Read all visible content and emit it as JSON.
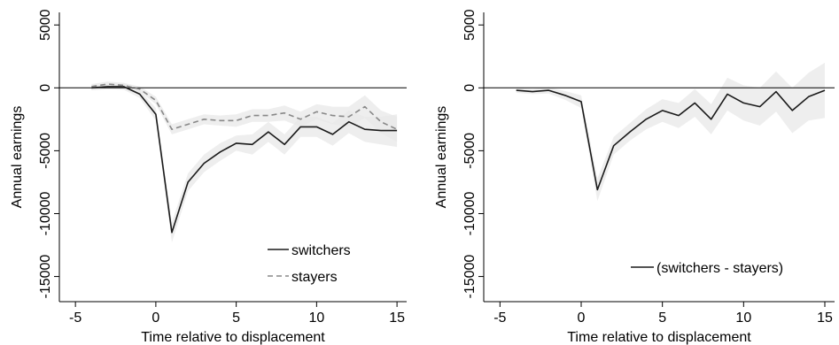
{
  "chart_data": [
    {
      "type": "line",
      "xlabel": "Time relative to displacement",
      "ylabel": "Annual earnings",
      "xlim": [
        -6,
        15.6
      ],
      "ylim": [
        -17000,
        6000
      ],
      "xticks": [
        -5,
        0,
        5,
        10,
        15
      ],
      "yticks": [
        5000,
        0,
        -5000,
        -10000,
        -15000
      ],
      "xtick_labels": [
        "-5",
        "0",
        "5",
        "10",
        "15"
      ],
      "ytick_labels": [
        "5000",
        "0",
        "-5000",
        "-10000",
        "-15000"
      ],
      "reference_line_y": 0,
      "grid": false,
      "legend_position": "bottom-right",
      "x": [
        -4,
        -3,
        -2,
        -1,
        0,
        1,
        2,
        3,
        4,
        5,
        6,
        7,
        8,
        9,
        10,
        11,
        12,
        13,
        14,
        15
      ],
      "series": [
        {
          "name": "switchers",
          "style": "solid",
          "color": "#1a1a1a",
          "values": [
            0,
            100,
            100,
            -500,
            -2100,
            -11500,
            -7500,
            -6000,
            -5100,
            -4400,
            -4500,
            -3500,
            -4500,
            -3100,
            -3100,
            -3700,
            -2700,
            -3300,
            -3400,
            -3400
          ],
          "ci_lower": [
            -200,
            -100,
            -150,
            -800,
            -2600,
            -12300,
            -8200,
            -6700,
            -5800,
            -5000,
            -5300,
            -4300,
            -5300,
            -3900,
            -3900,
            -4600,
            -3600,
            -4300,
            -4500,
            -4700
          ],
          "ci_upper": [
            200,
            300,
            350,
            -200,
            -1600,
            -10700,
            -6800,
            -5300,
            -4400,
            -3800,
            -3700,
            -2700,
            -3700,
            -2300,
            -2300,
            -2800,
            -1800,
            -2300,
            -2300,
            -2100
          ]
        },
        {
          "name": "stayers",
          "style": "dashed",
          "color": "#888888",
          "values": [
            100,
            300,
            200,
            -100,
            -1000,
            -3300,
            -2900,
            -2500,
            -2600,
            -2600,
            -2200,
            -2200,
            -2000,
            -2500,
            -1900,
            -2200,
            -2300,
            -1500,
            -2700,
            -3300
          ],
          "ci_lower": [
            -100,
            100,
            0,
            -300,
            -1300,
            -3700,
            -3300,
            -2900,
            -3000,
            -3100,
            -2700,
            -2700,
            -2600,
            -3100,
            -2500,
            -2900,
            -3100,
            -2400,
            -3600,
            -4300
          ],
          "ci_upper": [
            300,
            500,
            400,
            100,
            -700,
            -2900,
            -2500,
            -2100,
            -2200,
            -2100,
            -1700,
            -1700,
            -1400,
            -1900,
            -1300,
            -1500,
            -1500,
            -600,
            -1800,
            -2300
          ]
        }
      ]
    },
    {
      "type": "line",
      "xlabel": "Time relative to displacement",
      "ylabel": "Annual earnings",
      "xlim": [
        -6,
        15.6
      ],
      "ylim": [
        -17000,
        6000
      ],
      "xticks": [
        -5,
        0,
        5,
        10,
        15
      ],
      "yticks": [
        5000,
        0,
        -5000,
        -10000,
        -15000
      ],
      "xtick_labels": [
        "-5",
        "0",
        "5",
        "10",
        "15"
      ],
      "ytick_labels": [
        "5000",
        "0",
        "-5000",
        "-10000",
        "-15000"
      ],
      "reference_line_y": 0,
      "grid": false,
      "legend_position": "bottom-right",
      "x": [
        -4,
        -3,
        -2,
        -1,
        0,
        1,
        2,
        3,
        4,
        5,
        6,
        7,
        8,
        9,
        10,
        11,
        12,
        13,
        14,
        15
      ],
      "series": [
        {
          "name": "(switchers - stayers)",
          "style": "solid",
          "color": "#1a1a1a",
          "values": [
            -200,
            -300,
            -200,
            -600,
            -1100,
            -8100,
            -4600,
            -3500,
            -2500,
            -1800,
            -2200,
            -1200,
            -2500,
            -500,
            -1200,
            -1500,
            -300,
            -1800,
            -700,
            -200
          ],
          "ci_lower": [
            -400,
            -500,
            -450,
            -950,
            -1600,
            -9000,
            -5300,
            -4200,
            -3300,
            -2700,
            -3200,
            -2300,
            -3700,
            -1800,
            -2600,
            -3000,
            -1900,
            -3600,
            -2600,
            -2400
          ],
          "ci_upper": [
            0,
            -100,
            50,
            -250,
            -600,
            -7200,
            -3900,
            -2800,
            -1700,
            -900,
            -1200,
            -100,
            -1300,
            800,
            200,
            0,
            1300,
            0,
            1200,
            2000
          ]
        }
      ]
    }
  ]
}
